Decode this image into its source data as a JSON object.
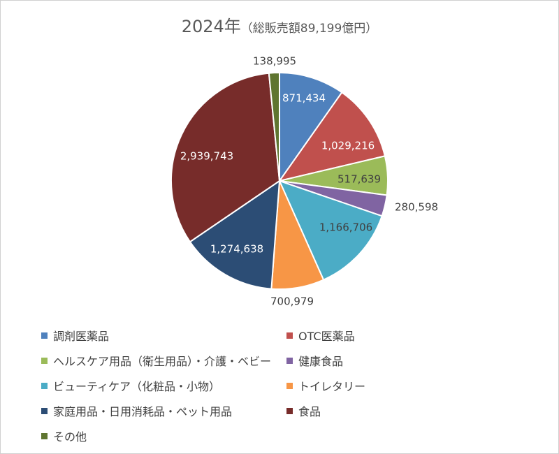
{
  "chart_data": {
    "type": "pie",
    "title": "2024年",
    "subtitle": "（総販売額89,199億円）",
    "categories": [
      "調剤医薬品",
      "OTC医薬品",
      "ヘルスケア用品（衛生用品）・介護・ベビー",
      "健康食品",
      "ビューティケア（化粧品・小物）",
      "トイレタリー",
      "家庭用品・日用消耗品・ペット用品",
      "食品",
      "その他"
    ],
    "values": [
      871434,
      1029216,
      517639,
      280598,
      1166706,
      700979,
      1274638,
      2939743,
      138995
    ],
    "value_labels": [
      "871,434",
      "1,029,216",
      "517,639",
      "280,598",
      "1,166,706",
      "700,979",
      "1,274,638",
      "2,939,743",
      "138,995"
    ],
    "colors": [
      "#4f81bd",
      "#c0504d",
      "#9bbb59",
      "#8064a2",
      "#4bacc6",
      "#f79646",
      "#2c4d75",
      "#772c2a",
      "#5f7530"
    ],
    "label_colors": [
      "#ffffff",
      "#ffffff",
      "#404040",
      "#404040",
      "#404040",
      "#404040",
      "#ffffff",
      "#ffffff",
      "#404040"
    ],
    "legend_position": "bottom"
  }
}
